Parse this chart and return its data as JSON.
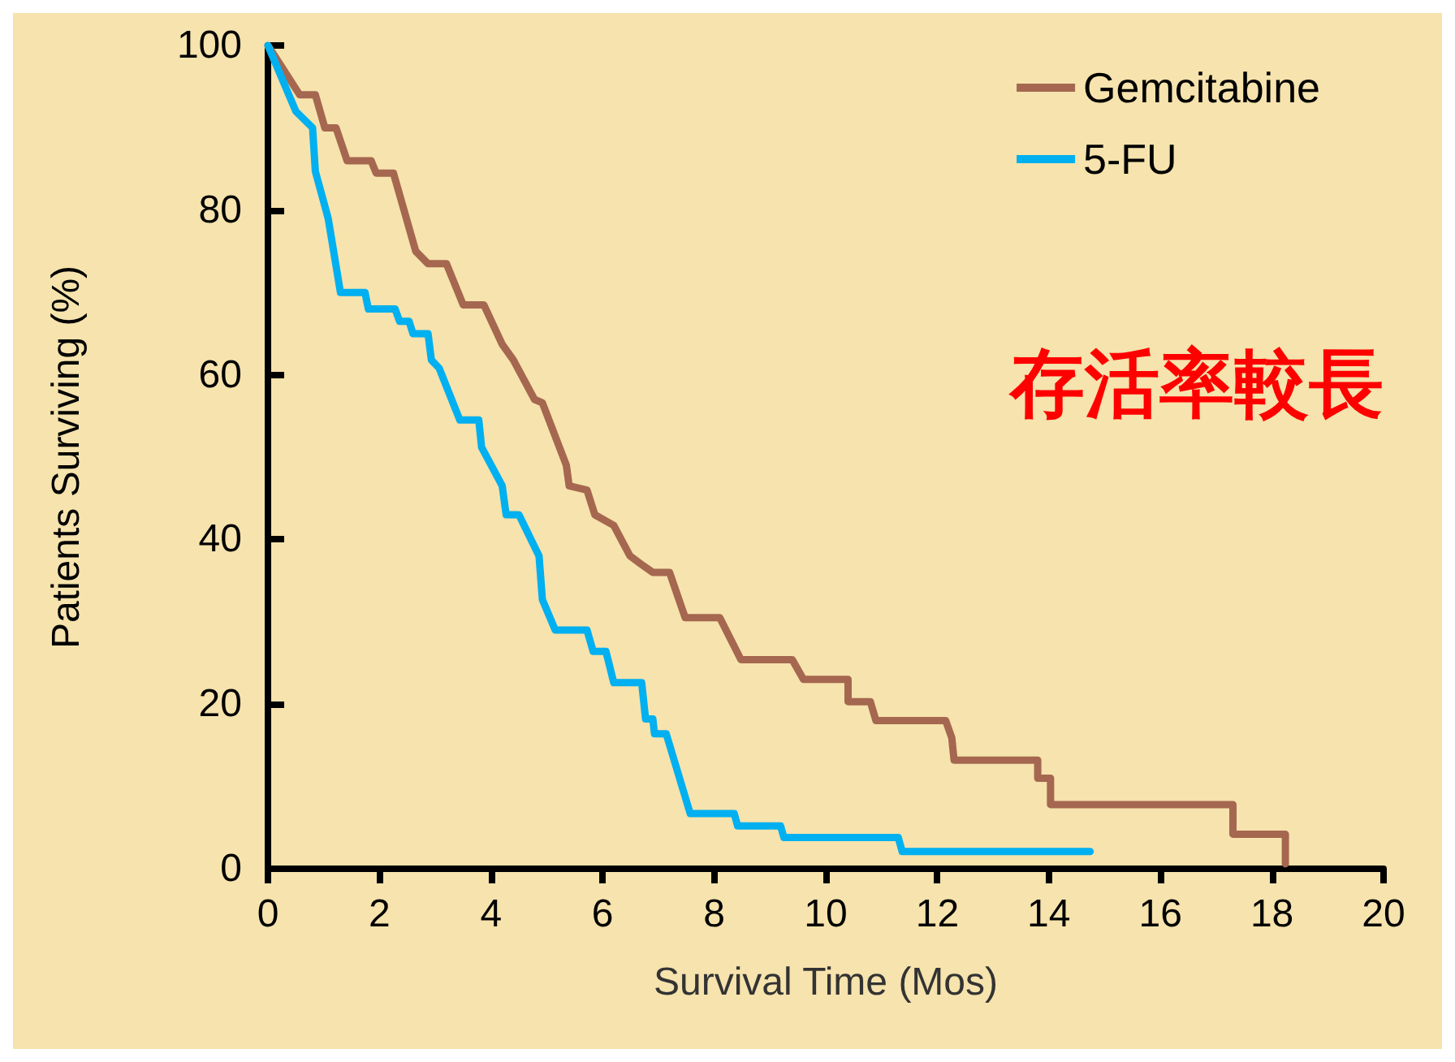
{
  "chart_data": {
    "type": "line",
    "xlabel": "Survival Time (Mos)",
    "ylabel": "Patients Surviving (%)",
    "xlim": [
      0,
      20
    ],
    "ylim": [
      0,
      100
    ],
    "xticks": [
      0,
      2,
      4,
      6,
      8,
      10,
      12,
      14,
      16,
      18,
      20
    ],
    "yticks": [
      0,
      20,
      40,
      60,
      80,
      100
    ],
    "grid": false,
    "legend": "top right",
    "marker": "none",
    "line_style": "solid",
    "annotations": [
      "存活率較長"
    ],
    "series": [
      {
        "name": "Gemcitabine",
        "color": "#a5674f",
        "x": [
          0,
          0.57,
          0.85,
          1.02,
          1.22,
          1.42,
          1.85,
          1.94,
          2.25,
          2.65,
          2.87,
          3.2,
          3.5,
          3.87,
          4.2,
          4.4,
          4.78,
          4.92,
          5.35,
          5.4,
          5.72,
          5.86,
          6.2,
          6.49,
          6.69,
          6.9,
          7.2,
          7.48,
          8.1,
          8.48,
          9.4,
          9.6,
          10.4,
          10.4,
          10.8,
          10.9,
          12.15,
          12.26,
          12.3,
          13.8,
          13.8,
          14.03,
          14.03,
          17.3,
          17.3,
          18.24,
          18.24
        ],
        "values": [
          100,
          94,
          94,
          90,
          90,
          86,
          86,
          84.5,
          84.5,
          75,
          73.5,
          73.5,
          68.5,
          68.5,
          63.7,
          61.8,
          57,
          56.6,
          49,
          46.5,
          46,
          43,
          41.7,
          38,
          37,
          36,
          36,
          30.5,
          30.5,
          25.4,
          25.4,
          23,
          23,
          20.3,
          20.3,
          18,
          18,
          15.9,
          13.2,
          13.2,
          11,
          11,
          7.8,
          7.8,
          4.2,
          4.2,
          0.6
        ]
      },
      {
        "name": "5-FU",
        "color": "#00b0f0",
        "x": [
          0,
          0.5,
          0.8,
          0.85,
          1.08,
          1.3,
          1.74,
          1.8,
          2.28,
          2.36,
          2.53,
          2.6,
          2.87,
          2.93,
          3.07,
          3.44,
          3.78,
          3.83,
          4.2,
          4.27,
          4.5,
          4.86,
          4.92,
          5.15,
          5.72,
          5.83,
          6.06,
          6.2,
          6.7,
          6.77,
          6.9,
          6.93,
          7.14,
          7.57,
          8.36,
          8.42,
          9.19,
          9.25,
          11.3,
          11.37,
          14.74
        ],
        "values": [
          100,
          92,
          90,
          84.7,
          79,
          70,
          70,
          68,
          68,
          66.5,
          66.5,
          65,
          65,
          61.8,
          60.8,
          54.5,
          54.5,
          51.2,
          46.5,
          43,
          43,
          38,
          32.7,
          29,
          29,
          26.4,
          26.4,
          22.6,
          22.6,
          18.2,
          18.2,
          16.4,
          16.4,
          6.7,
          6.7,
          5.2,
          5.2,
          3.8,
          3.8,
          2.1,
          2.1
        ]
      }
    ]
  }
}
